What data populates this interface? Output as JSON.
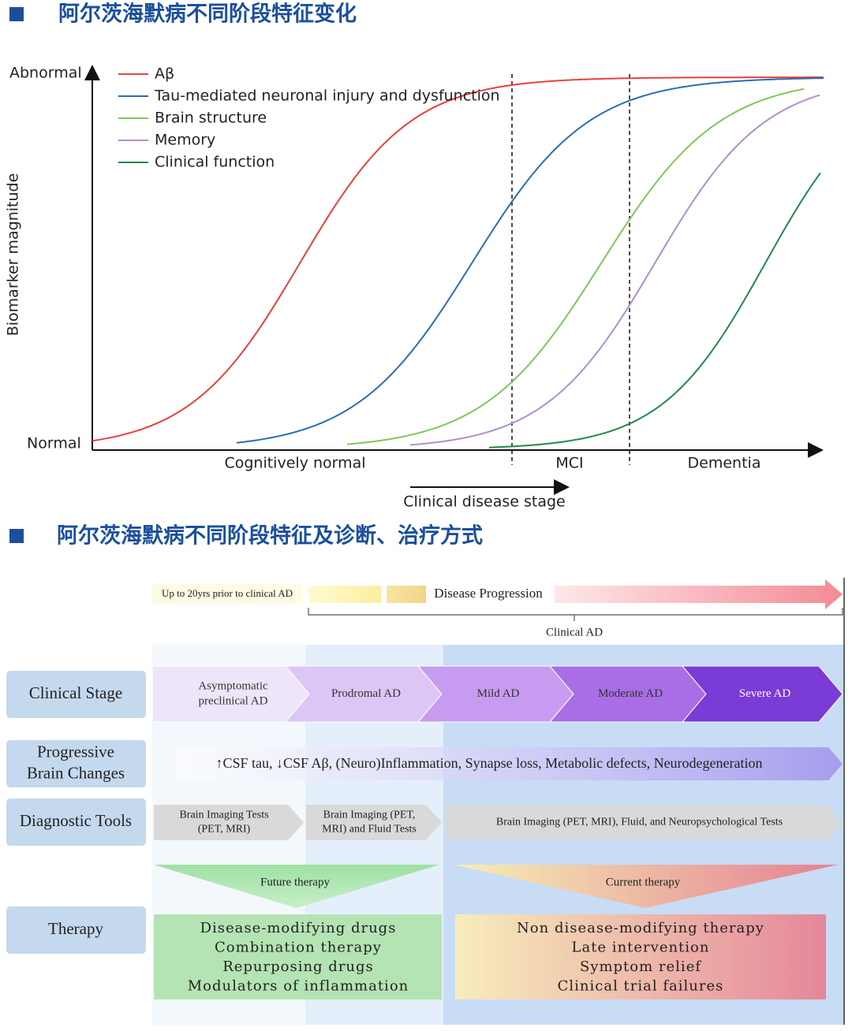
{
  "section1": {
    "title": "阿尔茨海默病不同阶段特征变化"
  },
  "figure1": {
    "y_axis": {
      "title": "Biomarker magnitude",
      "top": "Abnormal",
      "bottom": "Normal"
    },
    "stages": [
      "Cognitively normal",
      "MCI",
      "Dementia"
    ],
    "x_axis_label": "Clinical disease stage",
    "legend": [
      {
        "name": "Aβ",
        "color": "#e8413b"
      },
      {
        "name": "Tau-mediated neuronal injury and dysfunction",
        "color": "#2a6db5"
      },
      {
        "name": "Brain structure",
        "color": "#7ec85a"
      },
      {
        "name": "Memory",
        "color": "#b08fcc"
      },
      {
        "name": "Clinical function",
        "color": "#1f8a4c"
      }
    ]
  },
  "section2": {
    "title": "阿尔茨海默病不同阶段特征及诊断、治疗方式"
  },
  "figure2": {
    "timeline": {
      "prior": "Up to 20yrs prior to clinical AD",
      "progression": "Disease Progression",
      "clinical": "Clinical AD"
    },
    "row_labels": [
      [
        "Clinical Stage"
      ],
      [
        "Progressive",
        "Brain Changes"
      ],
      [
        "Diagnostic Tools"
      ],
      [
        "Therapy"
      ]
    ],
    "clinical_stages": [
      [
        "Asymptomatic",
        "preclinical AD"
      ],
      [
        "Prodromal AD"
      ],
      [
        "Mild AD"
      ],
      [
        "Moderate AD"
      ],
      [
        "Severe AD"
      ]
    ],
    "brain_changes": "↑CSF tau, ↓CSF Aβ, (Neuro)Inflammation, Synapse loss, Metabolic defects, Neurodegeneration",
    "diagnostic_tools": [
      [
        "Brain Imaging Tests",
        "(PET, MRI)"
      ],
      [
        "Brain Imaging (PET,",
        "MRI) and Fluid Tests"
      ],
      [
        "Brain Imaging (PET, MRI), Fluid, and Neuropsychological Tests"
      ]
    ],
    "therapy": {
      "future": {
        "label": "Future therapy",
        "items": [
          "Disease-modifying drugs",
          "Combination therapy",
          "Repurposing drugs",
          "Modulators of inflammation"
        ]
      },
      "current": {
        "label": "Current therapy",
        "items": [
          "Non disease-modifying therapy",
          "Late intervention",
          "Symptom relief",
          "Clinical trial failures"
        ]
      }
    }
  }
}
